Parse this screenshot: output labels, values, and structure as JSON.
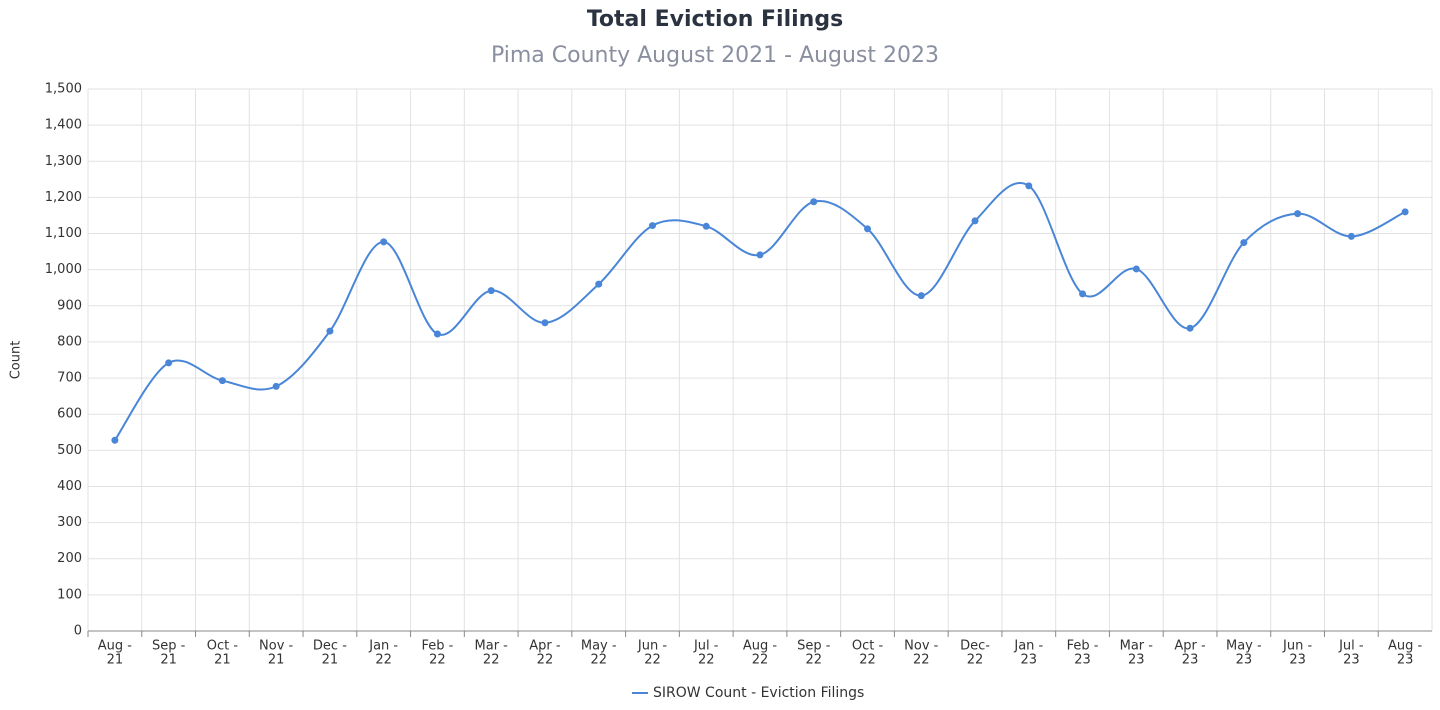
{
  "chart_data": {
    "type": "line",
    "title": "Total Eviction Filings",
    "subtitle": "Pima County August 2021 - August 2023",
    "y_label": "Count",
    "categories": [
      [
        "Aug -",
        "21"
      ],
      [
        "Sep -",
        "21"
      ],
      [
        "Oct -",
        "21"
      ],
      [
        "Nov -",
        "21"
      ],
      [
        "Dec -",
        "21"
      ],
      [
        "Jan -",
        "22"
      ],
      [
        "Feb -",
        "22"
      ],
      [
        "Mar -",
        "22"
      ],
      [
        "Apr -",
        "22"
      ],
      [
        "May -",
        "22"
      ],
      [
        "Jun -",
        "22"
      ],
      [
        "Jul -",
        "22"
      ],
      [
        "Aug -",
        "22"
      ],
      [
        "Sep -",
        "22"
      ],
      [
        "Oct -",
        "22"
      ],
      [
        "Nov -",
        "22"
      ],
      [
        "Dec-",
        "22"
      ],
      [
        "Jan -",
        "23"
      ],
      [
        "Feb -",
        "23"
      ],
      [
        "Mar -",
        "23"
      ],
      [
        "Apr -",
        "23"
      ],
      [
        "May -",
        "23"
      ],
      [
        "Jun -",
        "23"
      ],
      [
        "Jul -",
        "23"
      ],
      [
        "Aug -",
        "23"
      ]
    ],
    "series": [
      {
        "name": "SIROW Count - Eviction Filings",
        "color": "#4a86d8",
        "values": [
          528,
          742,
          693,
          677,
          830,
          1077,
          822,
          942,
          853,
          960,
          1122,
          1120,
          1041,
          1188,
          1113,
          928,
          1135,
          1232,
          933,
          1002,
          838,
          1075,
          1155,
          1092,
          1160
        ]
      }
    ],
    "ylim": [
      0,
      1500
    ],
    "yticks": [
      0,
      100,
      200,
      300,
      400,
      500,
      600,
      700,
      800,
      900,
      {
        "value": 1000,
        "label": "1,000"
      },
      {
        "value": 1100,
        "label": "1,100"
      },
      {
        "value": 1200,
        "label": "1,200"
      },
      {
        "value": 1300,
        "label": "1,300"
      },
      {
        "value": 1400,
        "label": "1,400"
      },
      {
        "value": 1500,
        "label": "1,500"
      }
    ],
    "grid": true
  }
}
